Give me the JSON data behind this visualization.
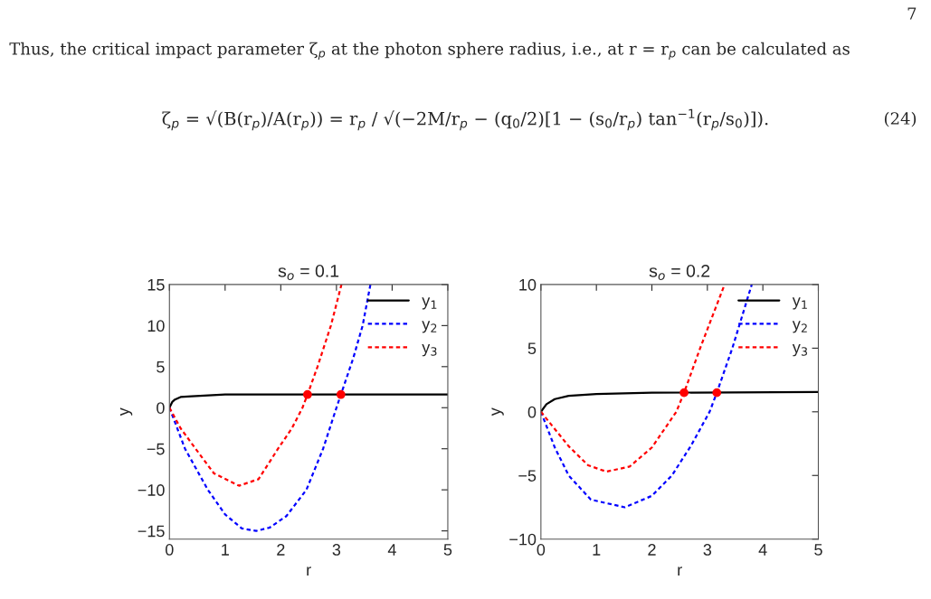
{
  "chart_data": [
    {
      "type": "line",
      "title": "s$_{o}$ = 0.1",
      "xlabel": "r",
      "ylabel": "y",
      "xlim": [
        0,
        5
      ],
      "ylim": [
        -16,
        15
      ],
      "xticks": [
        0,
        1,
        2,
        3,
        4,
        5
      ],
      "yticks": [
        {
          "value": -15,
          "label": "−15"
        },
        {
          "value": -10,
          "label": "−10"
        },
        {
          "value": -5,
          "label": "−5"
        },
        0,
        5,
        10,
        15
      ],
      "grid": false,
      "legend": "top right",
      "annotations": [
        "7",
        "Thus, the critical impact parameter ζ$_{p}$ at the photon sphere radius, i.e., at r = r$_{p}$ can be calculated as",
        "ζ$_{p}$ = √(B(r$_{p}$)/A(r$_{p}$)) = r$_{p}$ / √(−2M/r$_{p}$ − (q$_{0}$/2)[1 − (s$_{0}$/r$_{p}$) tan$^{−1}$(r$_{p}$/s$_{0}$)]).",
        "(24)"
      ],
      "series": [
        {
          "name": "y$_{1}$",
          "color": "#000000",
          "line_style": "solid",
          "x": [
            0,
            0.05,
            0.1,
            0.2,
            0.4,
            1,
            2,
            5
          ],
          "values": [
            0,
            0.7,
            1.0,
            1.3,
            1.4,
            1.6,
            1.6,
            1.6
          ]
        },
        {
          "name": "y$_{2}$",
          "color": "#0000ff",
          "line_style": "dashed",
          "x": [
            0,
            0.28,
            0.69,
            1.0,
            1.3,
            1.56,
            1.8,
            2.1,
            2.46,
            2.76,
            3.0,
            3.08,
            3.3,
            3.47,
            3.61
          ],
          "values": [
            0,
            -5,
            -10,
            -13,
            -14.7,
            -15,
            -14.6,
            -13.2,
            -10,
            -5,
            0,
            1.6,
            6,
            10,
            15
          ]
        },
        {
          "name": "y$_{3}$",
          "color": "#ff0000",
          "line_style": "dashed",
          "x": [
            0,
            0.2,
            0.47,
            0.8,
            1.25,
            1.6,
            1.95,
            2.2,
            2.39,
            2.48,
            2.66,
            2.9,
            3.09
          ],
          "values": [
            0,
            -2.5,
            -5,
            -8,
            -9.5,
            -8.7,
            -5,
            -2.5,
            0,
            1.6,
            5,
            10,
            15
          ]
        },
        {
          "type": "scatter",
          "color": "#ff0000",
          "marker": "circle",
          "x": [
            2.48,
            3.08
          ],
          "values": [
            1.6,
            1.6
          ]
        }
      ]
    },
    {
      "type": "line",
      "title": "s$_{o}$ = 0.2",
      "xlabel": "r",
      "ylabel": "y",
      "xlim": [
        0,
        5
      ],
      "ylim": [
        -10,
        10
      ],
      "xticks": [
        0,
        1,
        2,
        3,
        4,
        5
      ],
      "yticks": [
        {
          "value": -10,
          "label": "−10"
        },
        {
          "value": -5,
          "label": "−5"
        },
        0,
        5,
        10
      ],
      "grid": false,
      "legend": "top right",
      "series": [
        {
          "name": "y$_{1}$",
          "color": "#000000",
          "line_style": "solid",
          "x": [
            0,
            0.1,
            0.25,
            0.5,
            1,
            2,
            5
          ],
          "values": [
            0,
            0.6,
            1.0,
            1.25,
            1.4,
            1.5,
            1.55
          ]
        },
        {
          "name": "y$_{2}$",
          "color": "#0000ff",
          "line_style": "dashed",
          "x": [
            0,
            0.25,
            0.5,
            0.9,
            1.51,
            2.0,
            2.36,
            2.7,
            3.04,
            3.17,
            3.45,
            3.8
          ],
          "values": [
            0,
            -2.8,
            -5,
            -6.9,
            -7.5,
            -6.6,
            -5,
            -2.7,
            0,
            1.5,
            5,
            10
          ]
        },
        {
          "name": "y$_{3}$",
          "color": "#ff0000",
          "line_style": "dashed",
          "x": [
            0,
            0.5,
            0.85,
            1.18,
            1.6,
            2.0,
            2.44,
            2.58,
            2.87,
            3.31
          ],
          "values": [
            0,
            -2.7,
            -4.2,
            -4.7,
            -4.3,
            -2.8,
            0,
            1.5,
            5,
            10
          ]
        },
        {
          "type": "scatter",
          "color": "#ff0000",
          "marker": "circle",
          "x": [
            2.58,
            3.17
          ],
          "values": [
            1.5,
            1.5
          ]
        }
      ]
    }
  ]
}
